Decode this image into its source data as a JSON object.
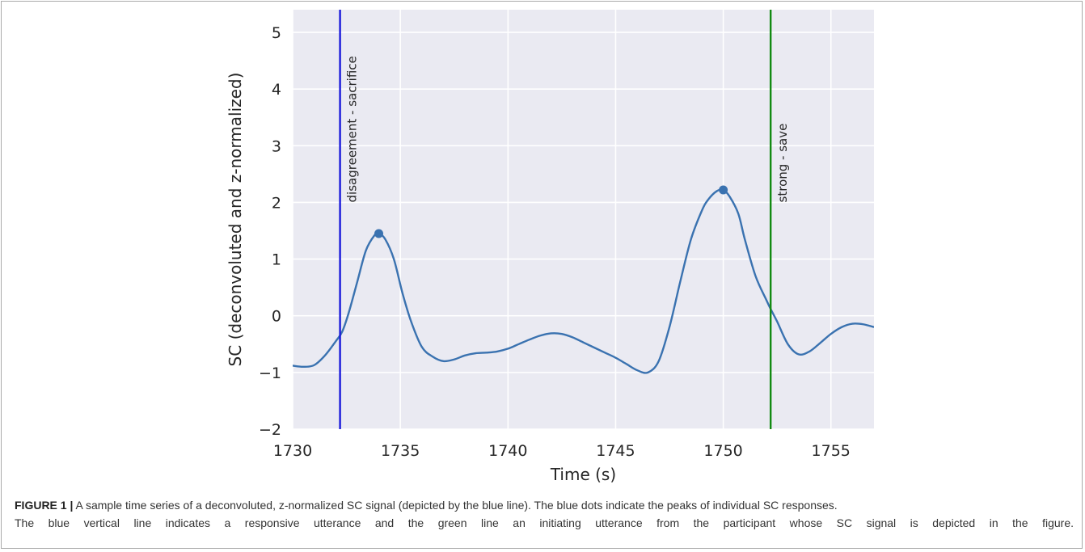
{
  "chart_data": {
    "type": "line",
    "xlabel": "Time (s)",
    "ylabel": "SC (deconvoluted and z-normalized)",
    "xlim": [
      1730,
      1757
    ],
    "ylim": [
      -2,
      5.4
    ],
    "xticks": [
      1730,
      1735,
      1740,
      1745,
      1750,
      1755
    ],
    "yticks": [
      -2,
      -1,
      0,
      1,
      2,
      3,
      4,
      5
    ],
    "xtick_labels": [
      "1730",
      "1735",
      "1740",
      "1745",
      "1750",
      "1755"
    ],
    "ytick_labels": [
      "−2",
      "−1",
      "0",
      "1",
      "2",
      "3",
      "4",
      "5"
    ],
    "grid": true,
    "background": "#eaeaf2",
    "series": [
      {
        "color": "#3a72b0",
        "x": [
          1730,
          1730.5,
          1731,
          1731.5,
          1732,
          1732.3,
          1732.6,
          1733,
          1733.4,
          1733.8,
          1734,
          1734.3,
          1734.7,
          1735.1,
          1735.5,
          1736,
          1736.5,
          1737,
          1737.5,
          1738,
          1738.5,
          1739,
          1739.5,
          1740,
          1740.5,
          1741,
          1741.5,
          1742,
          1742.5,
          1743,
          1743.5,
          1744,
          1744.5,
          1745,
          1745.5,
          1746,
          1746.5,
          1747,
          1747.5,
          1748,
          1748.5,
          1749,
          1749.3,
          1749.7,
          1750,
          1750.3,
          1750.7,
          1751,
          1751.5,
          1752,
          1752.2,
          1752.5,
          1753,
          1753.5,
          1754,
          1754.5,
          1755,
          1755.5,
          1756,
          1756.5,
          1757
        ],
        "y": [
          -0.88,
          -0.9,
          -0.87,
          -0.7,
          -0.45,
          -0.28,
          0.05,
          0.6,
          1.15,
          1.42,
          1.45,
          1.35,
          1.0,
          0.4,
          -0.1,
          -0.55,
          -0.72,
          -0.8,
          -0.77,
          -0.7,
          -0.66,
          -0.65,
          -0.63,
          -0.58,
          -0.5,
          -0.42,
          -0.35,
          -0.31,
          -0.32,
          -0.38,
          -0.47,
          -0.56,
          -0.65,
          -0.74,
          -0.85,
          -0.96,
          -1.0,
          -0.8,
          -0.2,
          0.6,
          1.35,
          1.85,
          2.05,
          2.2,
          2.22,
          2.1,
          1.8,
          1.35,
          0.7,
          0.28,
          0.12,
          -0.1,
          -0.5,
          -0.68,
          -0.63,
          -0.48,
          -0.32,
          -0.2,
          -0.14,
          -0.15,
          -0.2
        ]
      }
    ],
    "peaks": [
      {
        "x": 1734,
        "y": 1.45
      },
      {
        "x": 1750,
        "y": 2.22
      }
    ],
    "peak_color": "#3a72b0",
    "vlines": [
      {
        "x": 1732.2,
        "color": "#1a1adb",
        "label": "disagreement - sacrifice"
      },
      {
        "x": 1752.2,
        "color": "#138a13",
        "label": "strong - save"
      }
    ]
  },
  "caption": {
    "label": "FIGURE 1 |",
    "line1": "A sample time series of a deconvoluted, z-normalized SC signal (depicted by the blue line). The blue dots indicate the peaks of individual SC responses.",
    "line2": "The blue vertical line indicates a responsive utterance and the green line an initiating utterance from the participant whose SC signal is depicted in the figure."
  }
}
